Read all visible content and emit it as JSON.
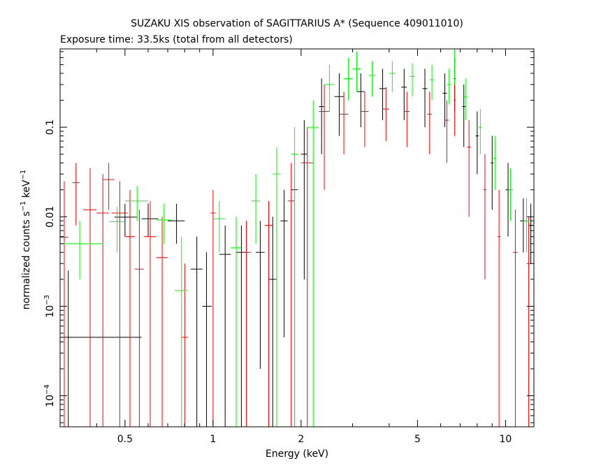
{
  "chart_data": {
    "type": "scatter",
    "title": "SUZAKU XIS observation of SAGITTARIUS A* (Sequence 409011010)",
    "subtitle": "Exposure time: 33.5ks (total from all detectors)",
    "xlabel": "Energy (keV)",
    "ylabel": {
      "prefix": "normalized counts s",
      "exp1": "−1",
      "mid": " keV",
      "exp2": "−1"
    },
    "xscale": "log",
    "yscale": "log",
    "xlim": [
      0.3,
      12.5
    ],
    "ylim": [
      4.5e-05,
      0.75
    ],
    "x_ticks": [
      {
        "value": 0.5,
        "label": "0.5"
      },
      {
        "value": 1,
        "label": "1"
      },
      {
        "value": 2,
        "label": "2"
      },
      {
        "value": 5,
        "label": "5"
      },
      {
        "value": 10,
        "label": "10"
      }
    ],
    "y_ticks": [
      {
        "value": 0.1,
        "label": "0.1",
        "base": "",
        "exp": ""
      },
      {
        "value": 0.01,
        "label": "0.01",
        "base": "",
        "exp": ""
      },
      {
        "value": 0.001,
        "label": "",
        "base": "10",
        "exp": "−3"
      },
      {
        "value": 0.0001,
        "label": "",
        "base": "10",
        "exp": "−4"
      }
    ],
    "series": [
      {
        "color": "#000000",
        "points": [
          [
            0.32,
            0.00045,
            0.3,
            0.57,
            4.25e-05,
            0.0025
          ],
          [
            0.5,
            0.0099,
            0.46,
            0.55,
            0.006,
            0.014
          ],
          [
            0.6,
            0.0095,
            0.57,
            0.65,
            0.006,
            0.014
          ],
          [
            0.75,
            0.009,
            0.7,
            0.8,
            0.005,
            0.014
          ],
          [
            0.88,
            0.0026,
            0.84,
            0.92,
            4.25e-05,
            0.006
          ],
          [
            0.95,
            0.001,
            0.92,
            0.99,
            4.25e-05,
            0.004
          ],
          [
            1.1,
            0.0038,
            1.05,
            1.15,
            4.25e-05,
            0.008
          ],
          [
            1.25,
            0.004,
            1.2,
            1.3,
            4.25e-05,
            0.008
          ],
          [
            1.45,
            0.004,
            1.4,
            1.5,
            0.0002,
            0.009
          ],
          [
            1.6,
            0.002,
            1.55,
            1.65,
            4.25e-05,
            0.01
          ],
          [
            1.75,
            0.009,
            1.7,
            1.8,
            0.00045,
            0.02
          ],
          [
            1.9,
            0.02,
            1.85,
            1.95,
            4.25e-05,
            0.05
          ],
          [
            2.05,
            0.05,
            2.0,
            2.1,
            0.002,
            0.12
          ],
          [
            2.35,
            0.17,
            2.3,
            2.4,
            0.05,
            0.35
          ],
          [
            2.7,
            0.22,
            2.6,
            2.8,
            0.08,
            0.4
          ],
          [
            3.2,
            0.25,
            3.1,
            3.3,
            0.1,
            0.4
          ],
          [
            3.8,
            0.27,
            3.7,
            3.9,
            0.12,
            0.45
          ],
          [
            4.5,
            0.28,
            4.4,
            4.6,
            0.12,
            0.45
          ],
          [
            5.3,
            0.27,
            5.2,
            5.4,
            0.1,
            0.45
          ],
          [
            6.2,
            0.24,
            6.1,
            6.3,
            0.1,
            0.4
          ],
          [
            6.7,
            0.35,
            6.65,
            6.75,
            0.15,
            0.6
          ],
          [
            7.2,
            0.17,
            7.1,
            7.3,
            0.06,
            0.3
          ],
          [
            8.0,
            0.08,
            7.9,
            8.1,
            0.03,
            0.15
          ],
          [
            9.0,
            0.04,
            8.9,
            9.1,
            0.012,
            0.08
          ],
          [
            10.2,
            0.02,
            10.0,
            10.4,
            0.006,
            0.04
          ],
          [
            11.5,
            0.009,
            11.2,
            11.8,
            0.004,
            0.016
          ],
          [
            12.2,
            0.008,
            12.0,
            12.4,
            0.003,
            0.014
          ]
        ]
      },
      {
        "color": "#ff0000",
        "points": [
          [
            0.31,
            0.0059,
            0.3,
            0.32,
            4.25e-05,
            0.025
          ],
          [
            0.34,
            0.024,
            0.33,
            0.35,
            0.008,
            0.04
          ],
          [
            0.38,
            0.012,
            0.36,
            0.4,
            4.25e-05,
            0.035
          ],
          [
            0.42,
            0.011,
            0.4,
            0.44,
            4.25e-05,
            0.03
          ],
          [
            0.44,
            0.026,
            0.42,
            0.46,
            0.012,
            0.04
          ],
          [
            0.48,
            0.011,
            0.45,
            0.51,
            4.25e-05,
            0.025
          ],
          [
            0.52,
            0.006,
            0.5,
            0.54,
            4.25e-05,
            0.02
          ],
          [
            0.56,
            0.0026,
            0.54,
            0.58,
            4.25e-05,
            0.012
          ],
          [
            0.61,
            0.006,
            0.58,
            0.64,
            4.25e-05,
            0.015
          ],
          [
            0.67,
            0.0035,
            0.64,
            0.7,
            4.25e-05,
            0.01
          ],
          [
            0.8,
            0.00045,
            0.78,
            0.82,
            4.25e-05,
            0.003
          ],
          [
            1.0,
            0.011,
            0.98,
            1.02,
            4.25e-05,
            0.02
          ],
          [
            1.3,
            0.004,
            1.25,
            1.35,
            4.25e-05,
            0.009
          ],
          [
            1.55,
            0.008,
            1.5,
            1.6,
            4.25e-05,
            0.015
          ],
          [
            1.85,
            0.015,
            1.8,
            1.9,
            4.25e-05,
            0.04
          ],
          [
            2.1,
            0.04,
            2.0,
            2.2,
            4.25e-05,
            0.1
          ],
          [
            2.4,
            0.15,
            2.3,
            2.5,
            0.02,
            0.3
          ],
          [
            2.8,
            0.14,
            2.7,
            2.9,
            0.05,
            0.25
          ],
          [
            3.3,
            0.15,
            3.2,
            3.4,
            0.06,
            0.25
          ],
          [
            3.9,
            0.16,
            3.8,
            4.0,
            0.07,
            0.28
          ],
          [
            4.6,
            0.15,
            4.5,
            4.7,
            0.06,
            0.25
          ],
          [
            5.5,
            0.14,
            5.4,
            5.6,
            0.05,
            0.25
          ],
          [
            6.3,
            0.12,
            6.2,
            6.4,
            0.04,
            0.2
          ],
          [
            6.7,
            0.2,
            6.65,
            6.75,
            0.08,
            0.35
          ],
          [
            7.5,
            0.06,
            7.4,
            7.6,
            0.01,
            0.12
          ],
          [
            8.5,
            0.02,
            8.4,
            8.6,
            0.002,
            0.05
          ],
          [
            9.5,
            0.006,
            9.4,
            9.6,
            4.25e-05,
            0.02
          ],
          [
            10.8,
            0.004,
            10.6,
            11.0,
            4.25e-05,
            0.012
          ],
          [
            12.0,
            0.003,
            11.8,
            12.2,
            4.25e-05,
            0.01
          ]
        ]
      },
      {
        "color": "#00ff00",
        "points": [
          [
            0.35,
            0.005,
            0.3,
            0.42,
            0.002,
            0.009
          ],
          [
            0.47,
            0.0088,
            0.44,
            0.5,
            0.004,
            0.013
          ],
          [
            0.55,
            0.015,
            0.5,
            0.6,
            0.009,
            0.022
          ],
          [
            0.68,
            0.0092,
            0.64,
            0.72,
            0.005,
            0.014
          ],
          [
            0.78,
            0.0015,
            0.74,
            0.82,
            4.25e-05,
            0.006
          ],
          [
            1.05,
            0.0095,
            1.0,
            1.1,
            0.004,
            0.015
          ],
          [
            1.2,
            0.0045,
            1.15,
            1.25,
            4.25e-05,
            0.01
          ],
          [
            1.4,
            0.015,
            1.35,
            1.45,
            0.005,
            0.03
          ],
          [
            1.65,
            0.03,
            1.6,
            1.7,
            4.25e-05,
            0.06
          ],
          [
            1.9,
            0.05,
            1.85,
            1.95,
            4.25e-05,
            0.1
          ],
          [
            2.2,
            0.1,
            2.1,
            2.3,
            4.25e-05,
            0.2
          ],
          [
            2.5,
            0.3,
            2.4,
            2.6,
            0.15,
            0.5
          ],
          [
            2.9,
            0.35,
            2.8,
            3.0,
            0.2,
            0.6
          ],
          [
            3.1,
            0.45,
            3.0,
            3.2,
            0.25,
            0.7
          ],
          [
            3.5,
            0.38,
            3.4,
            3.6,
            0.22,
            0.55
          ],
          [
            4.1,
            0.4,
            4.0,
            4.2,
            0.25,
            0.55
          ],
          [
            4.8,
            0.37,
            4.7,
            4.9,
            0.22,
            0.52
          ],
          [
            5.6,
            0.34,
            5.5,
            5.7,
            0.2,
            0.5
          ],
          [
            6.4,
            0.3,
            6.3,
            6.5,
            0.18,
            0.45
          ],
          [
            6.7,
            0.55,
            6.65,
            6.75,
            0.3,
            0.75
          ],
          [
            7.3,
            0.22,
            7.2,
            7.4,
            0.12,
            0.35
          ],
          [
            8.2,
            0.1,
            8.1,
            8.3,
            0.05,
            0.16
          ],
          [
            9.2,
            0.045,
            9.1,
            9.3,
            0.02,
            0.08
          ],
          [
            10.4,
            0.02,
            10.2,
            10.6,
            0.009,
            0.035
          ],
          [
            11.8,
            0.009,
            11.5,
            12.1,
            0.004,
            0.016
          ]
        ]
      }
    ],
    "grid": false,
    "legend": "none"
  }
}
